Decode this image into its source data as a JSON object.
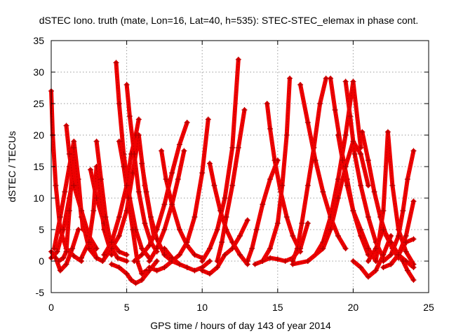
{
  "chart_data": {
    "type": "scatter",
    "title": "dSTEC Iono. truth (mate, Lon=16, Lat=40, h=535): STEC-STEC_elemax in phase cont.",
    "xlabel": "GPS time / hours of day 143 of year 2014",
    "ylabel": "dSTEC  / TECUs",
    "xlim": [
      0,
      25
    ],
    "ylim": [
      -5,
      35
    ],
    "xticks": [
      0,
      5,
      10,
      15,
      20,
      25
    ],
    "yticks": [
      -5,
      0,
      5,
      10,
      15,
      20,
      25,
      30,
      35
    ],
    "grid": true,
    "legend": "none",
    "marker": "plus",
    "color": "#ee0000",
    "series": [
      {
        "x": [
          0.0,
          0.1,
          0.3,
          0.6,
          1.0,
          1.5,
          2.0
        ],
        "y": [
          27,
          20,
          12,
          5,
          2,
          0.8,
          0
        ]
      },
      {
        "x": [
          0.0,
          0.4,
          0.8,
          1.2,
          1.5,
          2.0,
          2.6,
          3.0,
          3.4
        ],
        "y": [
          0.5,
          1.5,
          5,
          10,
          14,
          8,
          3,
          0.5,
          0
        ]
      },
      {
        "x": [
          0.0,
          0.3,
          0.6,
          1.0,
          1.4,
          1.8
        ],
        "y": [
          1.5,
          0.5,
          -1.5,
          -0.5,
          2,
          5
        ]
      },
      {
        "x": [
          0.2,
          0.6,
          0.9,
          1.2,
          1.5,
          1.8,
          2.1
        ],
        "y": [
          2,
          7,
          11,
          15,
          19,
          13,
          5
        ]
      },
      {
        "x": [
          0.5,
          0.8,
          1.0,
          1.2,
          1.5,
          2.0,
          2.5
        ],
        "y": [
          0,
          0.5,
          1.5,
          8,
          18,
          7,
          2
        ]
      },
      {
        "x": [
          1.0,
          1.2,
          1.5,
          2.0,
          2.5,
          3.0
        ],
        "y": [
          21.5,
          17,
          12,
          8,
          4,
          2
        ]
      },
      {
        "x": [
          2.0,
          2.5,
          2.8,
          3.0,
          3.5,
          4.0
        ],
        "y": [
          0.5,
          3,
          8,
          15,
          5,
          1
        ]
      },
      {
        "x": [
          2.6,
          3.0,
          3.5,
          4.0,
          4.5,
          5.0
        ],
        "y": [
          14.5,
          10,
          6,
          3,
          1.5,
          1
        ]
      },
      {
        "x": [
          3.0,
          3.3,
          3.6,
          4.0,
          4.4,
          5.0
        ],
        "y": [
          19,
          13,
          7,
          2,
          0.5,
          0
        ]
      },
      {
        "x": [
          2.5,
          3.0,
          3.4,
          4.0,
          4.5,
          5.0,
          5.4,
          5.8,
          6.2,
          6.8
        ],
        "y": [
          2,
          0.5,
          0,
          2,
          4,
          8,
          14,
          20,
          12,
          4
        ]
      },
      {
        "x": [
          4.3,
          4.5,
          4.8,
          5.2,
          5.6,
          6.0,
          6.5
        ],
        "y": [
          31.5,
          25,
          17,
          10,
          5,
          2,
          0.5
        ]
      },
      {
        "x": [
          4.5,
          4.8,
          5.1,
          5.4,
          5.7,
          6.0,
          6.3
        ],
        "y": [
          19,
          15,
          10,
          5,
          0,
          -2,
          -1.5
        ]
      },
      {
        "x": [
          3.5,
          4.0,
          4.5,
          5.0,
          5.3,
          5.6,
          5.8
        ],
        "y": [
          1,
          3,
          7,
          12,
          17,
          20,
          22.5
        ]
      },
      {
        "x": [
          5.0,
          5.2,
          5.5,
          5.8,
          6.2,
          6.6,
          7.0
        ],
        "y": [
          28,
          23,
          17,
          11,
          6,
          3,
          1.5
        ]
      },
      {
        "x": [
          4.0,
          4.5,
          5.0,
          5.3,
          5.6,
          6.0,
          6.5,
          7.0
        ],
        "y": [
          -0.5,
          -1,
          -2,
          -3,
          -3.5,
          -3,
          -1.5,
          0
        ]
      },
      {
        "x": [
          5.5,
          6.0,
          6.5,
          7.0,
          7.5,
          8.0,
          8.5,
          9.0
        ],
        "y": [
          0,
          1,
          2.5,
          5,
          9,
          14,
          18.5,
          22
        ]
      },
      {
        "x": [
          6.0,
          6.3,
          6.6,
          7.0,
          7.5,
          8.0,
          8.5
        ],
        "y": [
          15.5,
          11,
          7,
          3.5,
          1,
          0,
          -0.5
        ]
      },
      {
        "x": [
          6.5,
          7.0,
          7.5,
          8.0,
          8.4,
          8.8
        ],
        "y": [
          0,
          2,
          5,
          9,
          13,
          17.5
        ]
      },
      {
        "x": [
          7.3,
          7.6,
          8.0,
          8.5,
          9.0,
          9.5,
          10.0
        ],
        "y": [
          17.5,
          13,
          9,
          5,
          2.5,
          1,
          0.5
        ]
      },
      {
        "x": [
          6.5,
          7.0,
          7.5,
          8.0,
          8.5,
          9.0,
          9.5,
          10.0,
          10.4
        ],
        "y": [
          -1,
          -1.5,
          -1,
          0,
          1,
          3,
          7,
          14,
          22.5
        ]
      },
      {
        "x": [
          7.5,
          8.0,
          8.5,
          9.0,
          9.5,
          10.0,
          10.5
        ],
        "y": [
          2,
          0.5,
          -0.5,
          -1,
          -1.5,
          -1,
          0
        ]
      },
      {
        "x": [
          10.0,
          10.5,
          11.0,
          11.5,
          12.0,
          12.4
        ],
        "y": [
          0,
          2,
          5,
          10,
          18,
          32
        ]
      },
      {
        "x": [
          10.5,
          10.8,
          11.2,
          11.6,
          12.0,
          12.5,
          13.0
        ],
        "y": [
          15.5,
          12,
          8,
          5,
          3,
          1,
          -0.5
        ]
      },
      {
        "x": [
          11.0,
          11.3,
          11.6,
          12.0,
          12.4,
          12.8
        ],
        "y": [
          0,
          3,
          7,
          12,
          18,
          24
        ]
      },
      {
        "x": [
          10.0,
          10.5,
          11.0,
          11.5,
          12.0,
          12.5,
          13.0
        ],
        "y": [
          -1.5,
          -2,
          -1,
          1,
          2,
          4,
          6.5
        ]
      },
      {
        "x": [
          13.0,
          13.3,
          13.6,
          14.0,
          14.5,
          15.0
        ],
        "y": [
          0,
          2,
          5,
          9,
          13,
          16
        ]
      },
      {
        "x": [
          14.3,
          14.5,
          14.8,
          15.2,
          15.6,
          16.0,
          16.5
        ],
        "y": [
          25,
          21,
          16,
          11,
          7,
          4,
          1.5
        ]
      },
      {
        "x": [
          14.0,
          14.5,
          15.0,
          15.3,
          15.6,
          15.8
        ],
        "y": [
          0,
          2,
          6,
          12,
          20,
          29
        ]
      },
      {
        "x": [
          13.5,
          14.0,
          14.5,
          15.0,
          15.5,
          16.0,
          16.5,
          17.0
        ],
        "y": [
          -0.5,
          0,
          0.5,
          0.3,
          0,
          0.5,
          2,
          6
        ]
      },
      {
        "x": [
          16.0,
          16.3,
          16.6,
          17.0,
          17.4,
          17.8,
          18.2
        ],
        "y": [
          0,
          2,
          6,
          12,
          18,
          25,
          29
        ]
      },
      {
        "x": [
          16.5,
          17.0,
          17.5,
          18.0,
          18.5,
          19.0,
          19.5
        ],
        "y": [
          28,
          22,
          16,
          11,
          7,
          4,
          2
        ]
      },
      {
        "x": [
          17.0,
          17.5,
          18.0,
          18.5,
          19.0,
          19.5,
          20.0,
          20.5
        ],
        "y": [
          0,
          1,
          3,
          7,
          13,
          20,
          28.5,
          18
        ]
      },
      {
        "x": [
          18.5,
          18.8,
          19.2,
          19.6,
          20.0,
          20.5,
          21.0
        ],
        "y": [
          29,
          24,
          18,
          13,
          8,
          4,
          1
        ]
      },
      {
        "x": [
          19.0,
          19.3,
          19.6,
          20.0,
          20.5,
          21.0,
          21.5
        ],
        "y": [
          20,
          16,
          12,
          8,
          5,
          2,
          0
        ]
      },
      {
        "x": [
          19.5,
          19.8,
          20.1,
          20.5,
          21.0,
          21.5,
          22.0
        ],
        "y": [
          28.5,
          23,
          17,
          12,
          7,
          3,
          0.5
        ]
      },
      {
        "x": [
          16.0,
          17.0,
          18.0,
          18.5,
          19.0,
          19.5,
          20.0,
          20.5,
          21.0
        ],
        "y": [
          -0.5,
          0,
          2,
          5,
          10,
          15,
          19,
          17,
          12
        ]
      },
      {
        "x": [
          20.0,
          20.5,
          21.0,
          21.5,
          22.0,
          22.5
        ],
        "y": [
          0,
          -1,
          -2.5,
          -1.5,
          1,
          4
        ]
      },
      {
        "x": [
          20.6,
          21.0,
          21.4,
          21.8,
          22.2,
          22.6,
          23.0
        ],
        "y": [
          20.5,
          16,
          11,
          7,
          4,
          2,
          0.5
        ]
      },
      {
        "x": [
          21.5,
          22.0,
          22.3,
          22.6,
          23.0,
          23.5,
          24.0
        ],
        "y": [
          0,
          8,
          20.5,
          12,
          5,
          1.5,
          -0.5
        ]
      },
      {
        "x": [
          21.0,
          21.5,
          22.0,
          22.5,
          23.0,
          23.5,
          24.0
        ],
        "y": [
          0,
          2,
          5,
          3,
          1,
          0,
          -1
        ]
      },
      {
        "x": [
          22.0,
          22.5,
          23.0,
          23.3,
          23.6,
          24.0
        ],
        "y": [
          0,
          1,
          4,
          8,
          13,
          17.5
        ]
      },
      {
        "x": [
          22.5,
          23.0,
          23.5,
          24.0
        ],
        "y": [
          -0.5,
          1,
          4,
          9.5
        ]
      },
      {
        "x": [
          22.0,
          22.5,
          23.0,
          23.5,
          24.0
        ],
        "y": [
          -1,
          -0.5,
          1,
          3,
          3.5
        ]
      },
      {
        "x": [
          23.0,
          23.3,
          23.6,
          24.0
        ],
        "y": [
          1,
          0,
          -1.5,
          -3
        ]
      }
    ]
  }
}
